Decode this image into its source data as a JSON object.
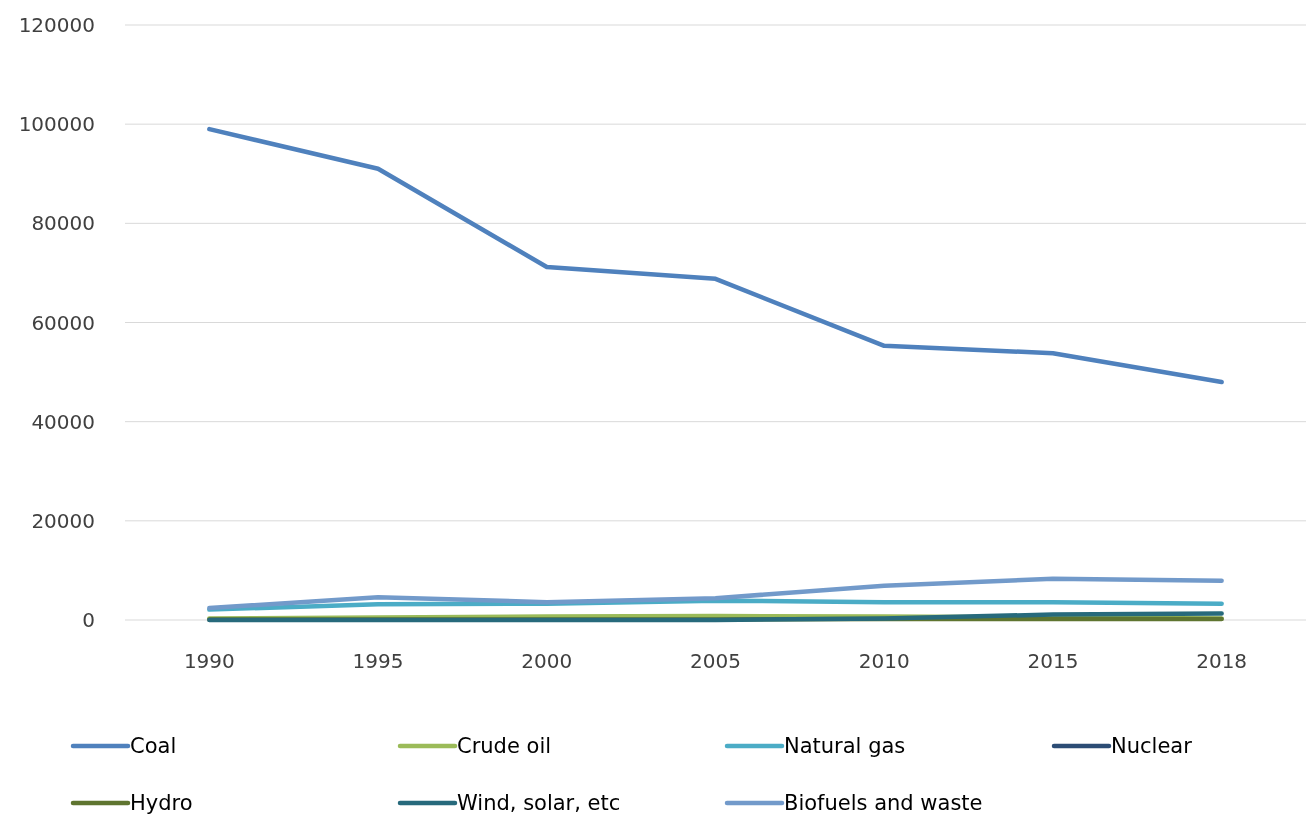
{
  "chart_data": {
    "type": "line",
    "categories": [
      "1990",
      "1995",
      "2000",
      "2005",
      "2010",
      "2015",
      "2018"
    ],
    "series": [
      {
        "name": "Coal",
        "color": "#4f81bd",
        "values": [
          99000,
          91000,
          71200,
          68800,
          55300,
          53800,
          48000
        ]
      },
      {
        "name": "Crude oil",
        "color": "#9bbb59",
        "values": [
          300,
          500,
          700,
          800,
          700,
          500,
          300
        ]
      },
      {
        "name": "Natural gas",
        "color": "#4bacc6",
        "values": [
          2100,
          3200,
          3300,
          3900,
          3600,
          3600,
          3300
        ]
      },
      {
        "name": "Nuclear",
        "color": "#2c4d75",
        "values": [
          null,
          null,
          null,
          null,
          null,
          null,
          null
        ]
      },
      {
        "name": "Hydro",
        "color": "#5f7530",
        "values": [
          100,
          100,
          100,
          100,
          200,
          200,
          200
        ]
      },
      {
        "name": "Wind, solar, etc",
        "color": "#276a7c",
        "values": [
          0,
          0,
          0,
          0,
          300,
          1100,
          1300
        ]
      },
      {
        "name": "Biofuels and waste",
        "color": "#729aca",
        "values": [
          2400,
          4600,
          3600,
          4400,
          6900,
          8300,
          7900
        ]
      }
    ],
    "ylim": [
      0,
      120000
    ],
    "yticks": [
      0,
      20000,
      40000,
      60000,
      80000,
      100000,
      120000
    ],
    "grid": "y",
    "legend": "bottom",
    "marker": "none",
    "line_style": "solid"
  }
}
